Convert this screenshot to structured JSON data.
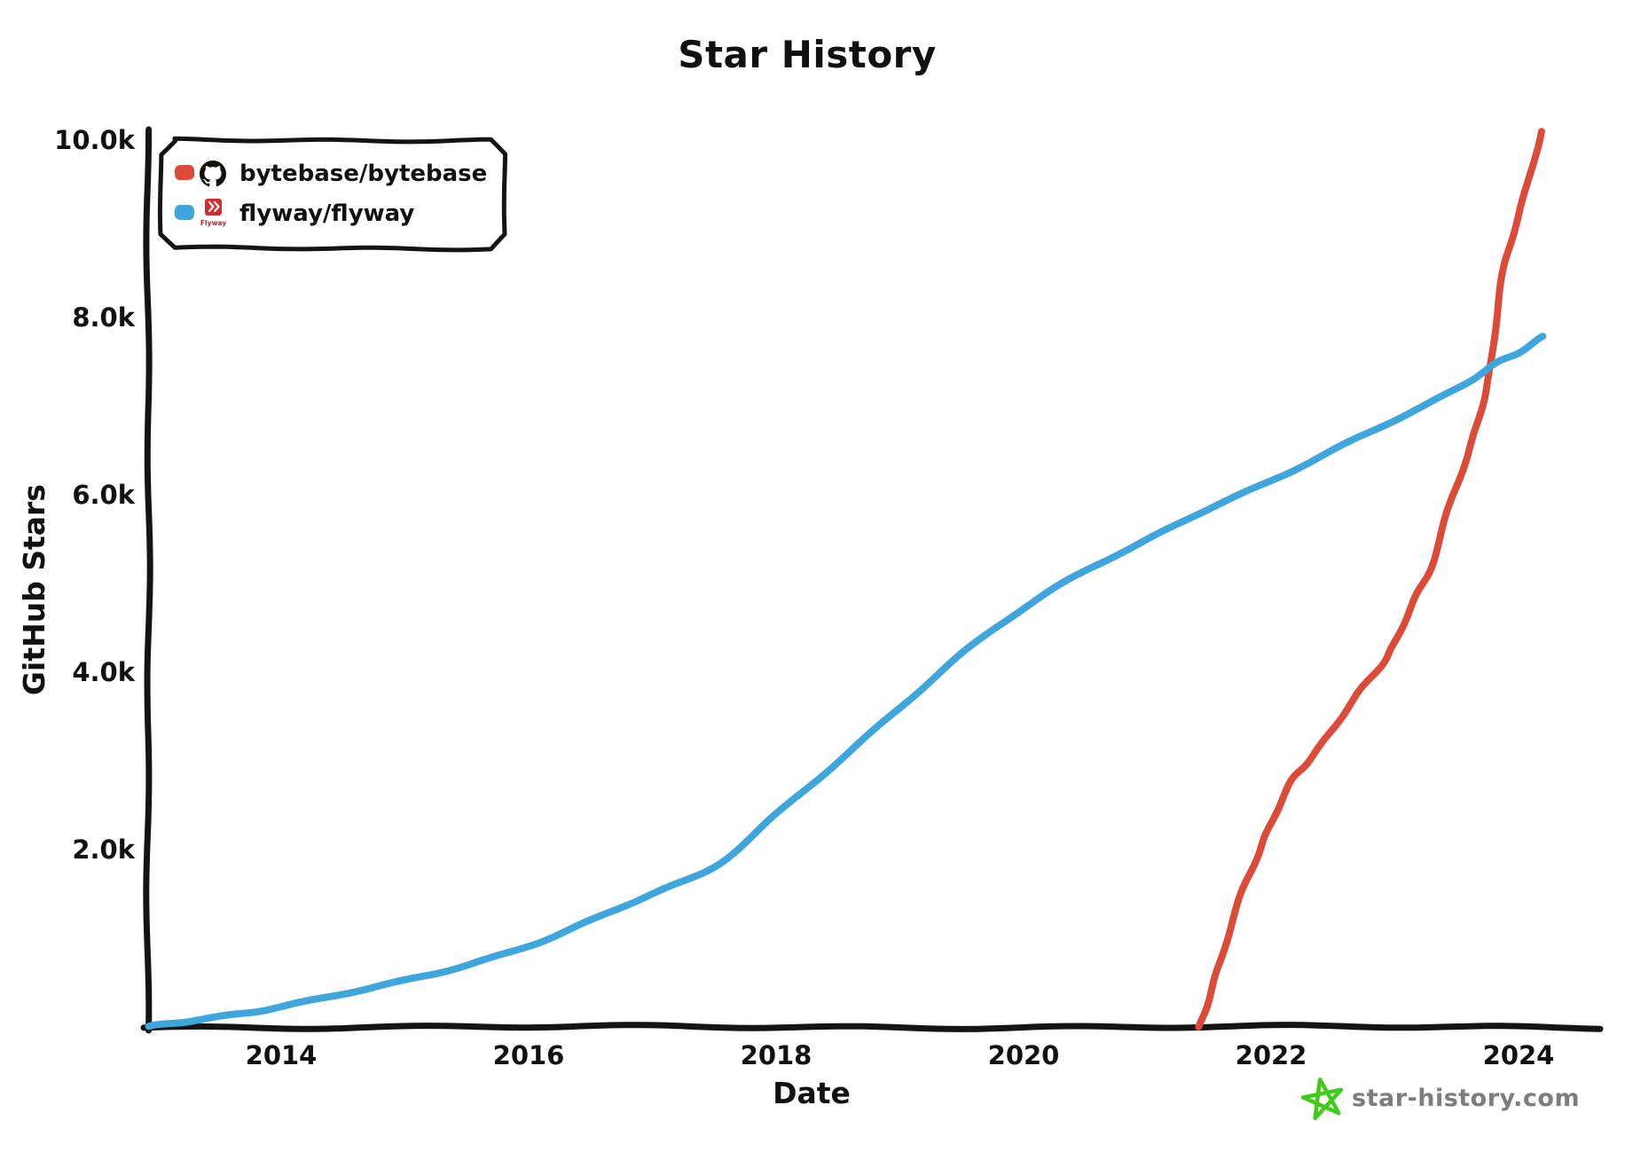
{
  "title": "Star History",
  "axes": {
    "x_label": "Date",
    "y_label": "GitHub Stars"
  },
  "legend": {
    "items": [
      {
        "label": "bytebase/bytebase",
        "swatch_color": "#dc4b38",
        "icon": "github-octocat-icon"
      },
      {
        "label": "flyway/flyway",
        "swatch_color": "#3fa5dd",
        "icon": "flyway-logo-icon",
        "icon_text": "Flyway"
      }
    ]
  },
  "watermark": {
    "text": "star-history.com",
    "star_color": "#3ecb19",
    "text_color": "#7d7d7d"
  },
  "colors": {
    "axis": "#141414",
    "bytebase_red": "#dc4b38",
    "flyway_blue": "#3fa5dd"
  },
  "chart_data": {
    "type": "line",
    "title": "Star History",
    "xlabel": "Date",
    "ylabel": "GitHub Stars",
    "x_axis_unit": "year",
    "grid": false,
    "legend_position": "top-left",
    "x_range": [
      2012.92,
      2024.6
    ],
    "y_range": [
      0,
      10300
    ],
    "x_ticks": [
      {
        "value": 2014,
        "label": "2014"
      },
      {
        "value": 2016,
        "label": "2016"
      },
      {
        "value": 2018,
        "label": "2018"
      },
      {
        "value": 2020,
        "label": "2020"
      },
      {
        "value": 2022,
        "label": "2022"
      },
      {
        "value": 2024,
        "label": "2024"
      }
    ],
    "y_ticks": [
      {
        "value": 2000,
        "label": "2.0k"
      },
      {
        "value": 4000,
        "label": "4.0k"
      },
      {
        "value": 6000,
        "label": "6.0k"
      },
      {
        "value": 8000,
        "label": "8.0k"
      },
      {
        "value": 10000,
        "label": "10.0k"
      }
    ],
    "series": [
      {
        "name": "bytebase/bytebase",
        "color": "#dc4b38",
        "points": [
          [
            2021.42,
            0
          ],
          [
            2021.5,
            350
          ],
          [
            2021.6,
            800
          ],
          [
            2021.75,
            1450
          ],
          [
            2021.9,
            1950
          ],
          [
            2022.0,
            2300
          ],
          [
            2022.15,
            2750
          ],
          [
            2022.3,
            3000
          ],
          [
            2022.5,
            3350
          ],
          [
            2022.7,
            3750
          ],
          [
            2022.9,
            4100
          ],
          [
            2023.0,
            4350
          ],
          [
            2023.15,
            4800
          ],
          [
            2023.3,
            5200
          ],
          [
            2023.45,
            5900
          ],
          [
            2023.6,
            6500
          ],
          [
            2023.7,
            7000
          ],
          [
            2023.78,
            7500
          ],
          [
            2023.85,
            8300
          ],
          [
            2023.95,
            8900
          ],
          [
            2024.05,
            9400
          ],
          [
            2024.18,
            10100
          ]
        ]
      },
      {
        "name": "flyway/flyway",
        "color": "#3fa5dd",
        "points": [
          [
            2012.93,
            0
          ],
          [
            2013.2,
            60
          ],
          [
            2013.6,
            140
          ],
          [
            2014.0,
            230
          ],
          [
            2014.5,
            370
          ],
          [
            2015.0,
            520
          ],
          [
            2015.5,
            700
          ],
          [
            2016.0,
            920
          ],
          [
            2016.5,
            1200
          ],
          [
            2017.0,
            1500
          ],
          [
            2017.5,
            1800
          ],
          [
            2018.0,
            2400
          ],
          [
            2018.5,
            3000
          ],
          [
            2019.0,
            3600
          ],
          [
            2019.5,
            4200
          ],
          [
            2020.0,
            4720
          ],
          [
            2020.5,
            5150
          ],
          [
            2021.0,
            5500
          ],
          [
            2021.5,
            5850
          ],
          [
            2022.0,
            6150
          ],
          [
            2022.5,
            6500
          ],
          [
            2023.0,
            6850
          ],
          [
            2023.5,
            7200
          ],
          [
            2023.78,
            7450
          ],
          [
            2024.0,
            7600
          ],
          [
            2024.2,
            7780
          ]
        ]
      }
    ]
  }
}
